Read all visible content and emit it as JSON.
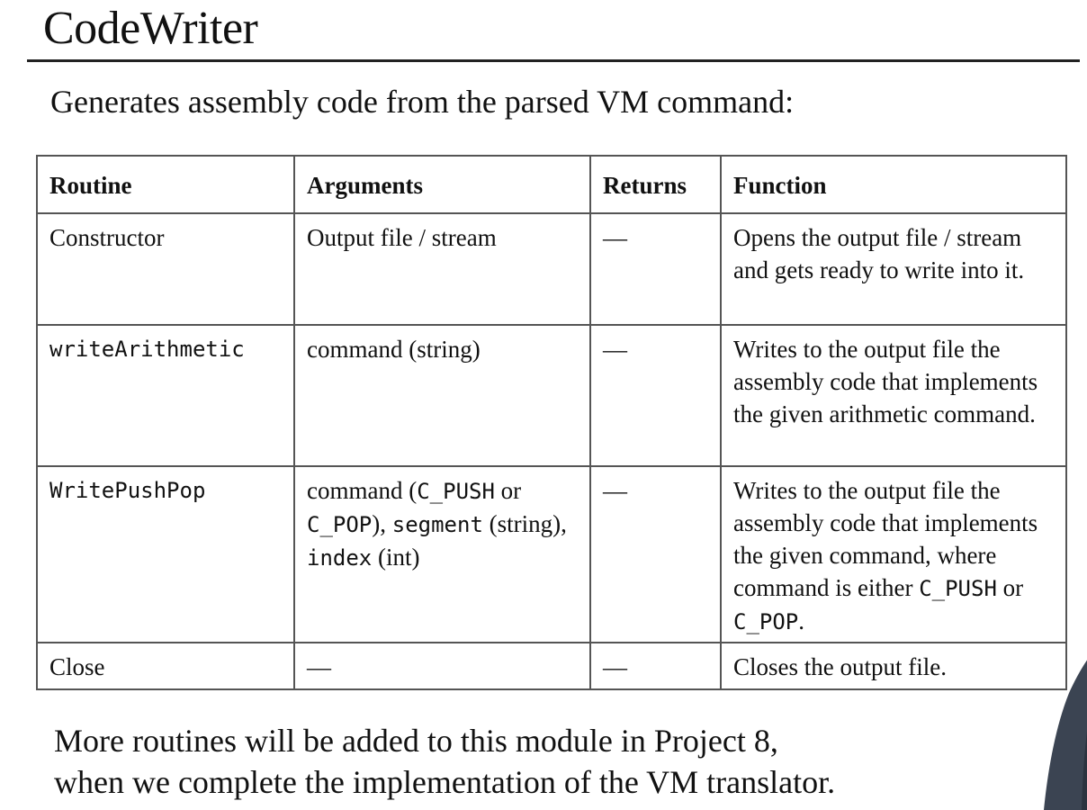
{
  "slide": {
    "title": "CodeWriter",
    "subtitle": "Generates assembly code from the parsed VM command:",
    "footer_line1": "More routines will be added to this module in Project 8,",
    "footer_line2": "when we complete the implementation of the VM translator."
  },
  "table": {
    "headers": [
      "Routine",
      "Arguments",
      "Returns",
      "Function"
    ],
    "rows": [
      {
        "routine": "Constructor",
        "args": "Output file / stream",
        "returns": "—",
        "function": "Opens the output file / stream and gets ready to write into it."
      },
      {
        "routine": "writeArithmetic",
        "args": "command (string)",
        "returns": "—",
        "function": "Writes to the output file the assembly code that implements the given arithmetic command."
      },
      {
        "routine": "WritePushPop",
        "args_parts": [
          "command (",
          "C_PUSH",
          " or ",
          "C_POP",
          "), ",
          "segment",
          " (string), ",
          "index",
          " (int)"
        ],
        "returns": "—",
        "function_parts": [
          "Writes to the output file the assembly code that implements the given command, where command is either ",
          "C_PUSH",
          " or ",
          "C_POP",
          "."
        ]
      },
      {
        "routine": "Close",
        "args": "—",
        "returns": "—",
        "function": "Closes the output file."
      }
    ]
  },
  "colors": {
    "background": "#ffffff",
    "text": "#111111",
    "border": "#555555"
  }
}
